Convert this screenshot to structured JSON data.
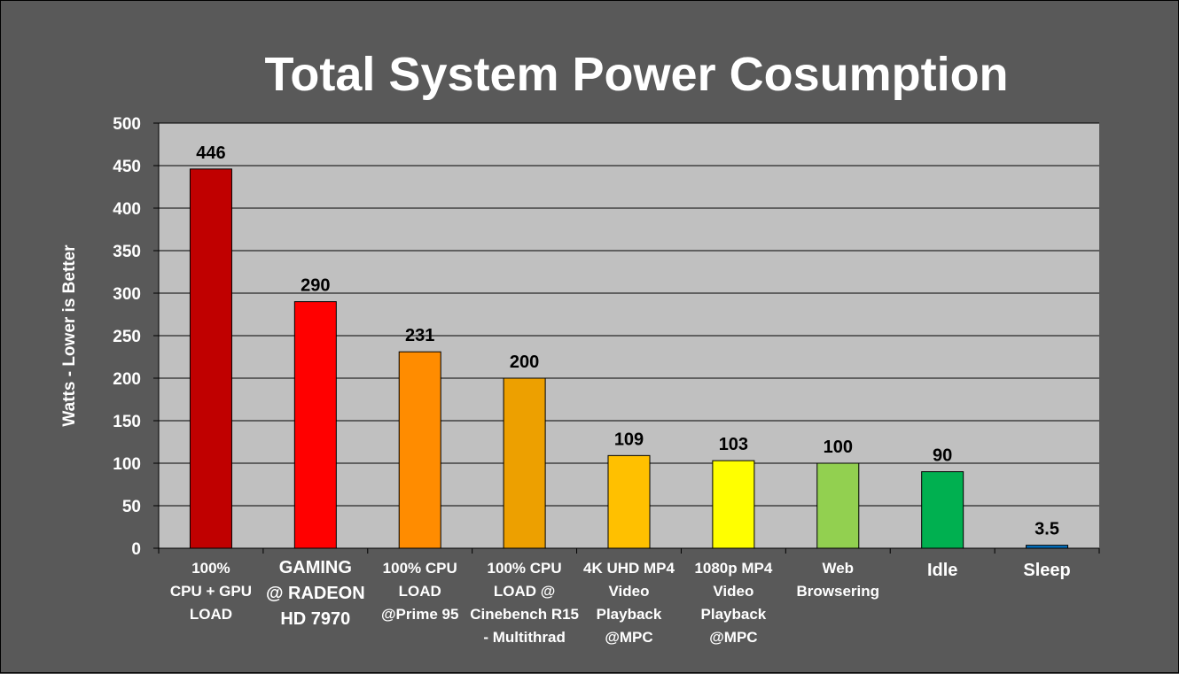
{
  "chart_data": {
    "type": "bar",
    "title": "Total System Power Cosumption",
    "xlabel": "",
    "ylabel": "Watts - Lower is Better",
    "ylim": [
      0,
      500
    ],
    "yticks": [
      "0",
      "50",
      "100",
      "150",
      "200",
      "250",
      "300",
      "350",
      "400",
      "450",
      "500"
    ],
    "grid": true,
    "legend": "none",
    "categories": [
      [
        "100%",
        "CPU + GPU",
        "LOAD"
      ],
      [
        "GAMING",
        "@ RADEON",
        "HD 7970"
      ],
      [
        "100% CPU",
        "LOAD",
        "@Prime 95"
      ],
      [
        "100% CPU",
        "LOAD @",
        "Cinebench R15",
        "- Multithrad"
      ],
      [
        "4K UHD MP4",
        "Video",
        "Playback",
        "@MPC"
      ],
      [
        "1080p MP4",
        "Video",
        "Playback",
        "@MPC"
      ],
      [
        "Web",
        "Browsering"
      ],
      [
        "Idle"
      ],
      [
        "Sleep"
      ]
    ],
    "values": [
      446,
      290,
      231,
      200,
      109,
      103,
      100,
      90,
      3.5
    ],
    "data_labels": [
      "446",
      "290",
      "231",
      "200",
      "109",
      "103",
      "100",
      "90",
      "3.5"
    ],
    "colors": [
      "#c00000",
      "#ff0000",
      "#ff8c00",
      "#eda000",
      "#ffc000",
      "#ffff00",
      "#92d050",
      "#00b050",
      "#0070c0"
    ],
    "background": "#595959",
    "plot_background": "#c0c0c0"
  }
}
